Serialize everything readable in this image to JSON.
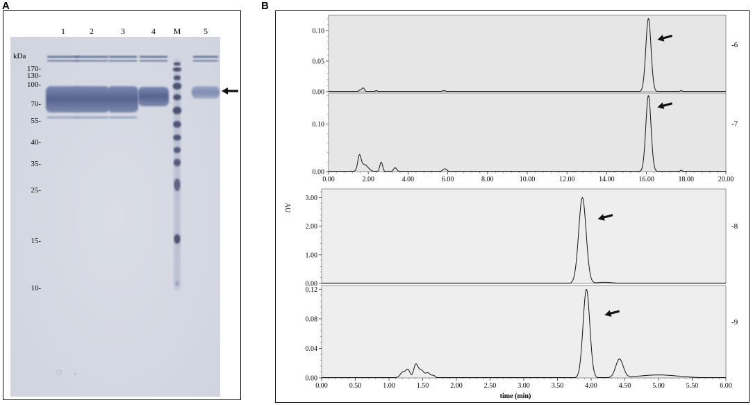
{
  "panel_a": {
    "letter": "A",
    "lane_labels": [
      "1",
      "2",
      "3",
      "4",
      "M",
      "5"
    ],
    "kda_label": "kDa",
    "marker_labels": [
      "170-",
      "130-",
      "100-",
      "70-",
      "55-",
      "40-",
      "35-",
      "25-",
      "15-",
      "10-"
    ],
    "marker_kda": [
      170,
      130,
      100,
      70,
      55,
      40,
      35,
      25,
      15,
      10
    ],
    "arrow_icon": "arrow-left-icon"
  },
  "panel_b": {
    "letter": "B",
    "y_axis_label": "AU",
    "x_axis_label": "time (min)",
    "arrow_icon": "arrow-left-icon",
    "colors": {
      "trace": "#111111",
      "plot_bg_top": "#e6e6e6",
      "plot_bg_bottom": "#eeeeee"
    }
  },
  "chart_data": [
    {
      "type": "line",
      "series_label": "-6",
      "xlim": [
        0,
        20
      ],
      "ylim": [
        0,
        0.125
      ],
      "y_ticks": [
        0.0,
        0.05,
        0.1
      ],
      "y_tick_labels": [
        "0.00",
        "0.05",
        "0.10"
      ],
      "peaks": [
        [
          1.6,
          0.003,
          0.07
        ],
        [
          1.75,
          0.006,
          0.06
        ],
        [
          2.4,
          0.002,
          0.05
        ],
        [
          5.8,
          0.002,
          0.08
        ],
        [
          16.1,
          0.12,
          0.13
        ],
        [
          17.75,
          0.002,
          0.05
        ]
      ],
      "arrow_at": [
        16.55,
        0.085
      ]
    },
    {
      "type": "line",
      "series_label": "-7",
      "xlim": [
        0,
        20
      ],
      "ylim": [
        0,
        0.165
      ],
      "x_ticks": [
        0,
        2,
        4,
        6,
        8,
        10,
        12,
        14,
        16,
        18,
        20
      ],
      "x_tick_labels": [
        "0.00",
        "2.00",
        "4.00",
        "6.00",
        "8.00",
        "10.00",
        "12.00",
        "14.00",
        "16.00",
        "18.00",
        "20.00"
      ],
      "y_ticks": [
        0.0,
        0.1
      ],
      "y_tick_labels": [
        "0.00",
        "0.10"
      ],
      "peaks": [
        [
          1.55,
          0.028,
          0.08
        ],
        [
          1.78,
          0.015,
          0.2
        ],
        [
          2.65,
          0.02,
          0.07
        ],
        [
          3.35,
          0.008,
          0.08
        ],
        [
          5.85,
          0.006,
          0.1
        ],
        [
          16.1,
          0.16,
          0.13
        ],
        [
          17.75,
          0.003,
          0.05
        ]
      ],
      "arrow_at": [
        16.55,
        0.135
      ]
    },
    {
      "type": "line",
      "series_label": "-8",
      "xlim": [
        0,
        6
      ],
      "ylim": [
        0,
        3.3
      ],
      "y_ticks": [
        0.0,
        1.0,
        2.0,
        3.0
      ],
      "y_tick_labels": [
        "0.00",
        "1.00",
        "2.00",
        "3.00"
      ],
      "peaks": [
        [
          1.45,
          0.01,
          0.02
        ],
        [
          3.87,
          3.0,
          0.055
        ],
        [
          4.2,
          0.04,
          0.12
        ]
      ],
      "arrow_at": [
        4.1,
        2.25
      ]
    },
    {
      "type": "line",
      "series_label": "-9",
      "xlim": [
        0,
        6
      ],
      "ylim": [
        0,
        0.125
      ],
      "x_ticks": [
        0,
        0.5,
        1,
        1.5,
        2,
        2.5,
        3,
        3.5,
        4,
        4.5,
        5,
        5.5,
        6
      ],
      "x_tick_labels": [
        "0.00",
        "0.50",
        "1.00",
        "1.50",
        "2.00",
        "2.50",
        "3.00",
        "3.50",
        "4.00",
        "4.50",
        "5.00",
        "5.50",
        "6.00"
      ],
      "y_ticks": [
        0.0,
        0.04,
        0.08,
        0.12
      ],
      "y_tick_labels": [
        "0.00",
        "0.04",
        "0.08",
        "0.12"
      ],
      "peaks": [
        [
          1.25,
          0.011,
          0.06
        ],
        [
          1.42,
          0.018,
          0.045
        ],
        [
          1.55,
          0.008,
          0.04
        ],
        [
          1.65,
          0.004,
          0.03
        ],
        [
          3.93,
          0.12,
          0.05
        ],
        [
          4.42,
          0.025,
          0.055
        ],
        [
          5.0,
          0.004,
          0.3
        ]
      ],
      "arrow_at": [
        4.2,
        0.085
      ]
    }
  ]
}
